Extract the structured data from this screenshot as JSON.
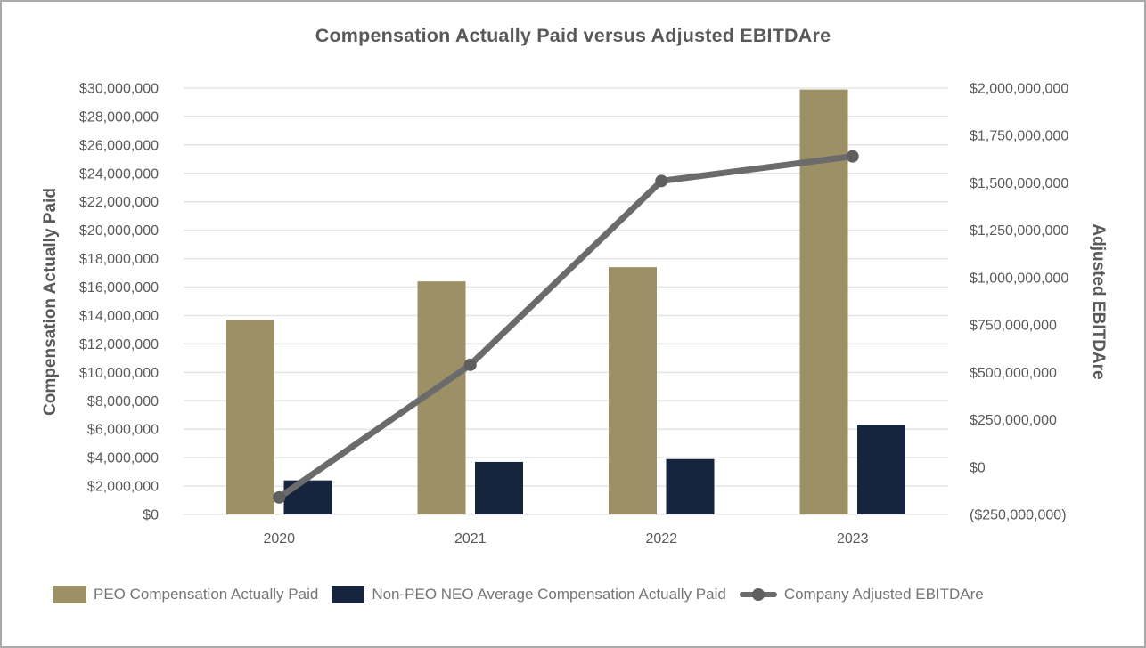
{
  "chart_data": {
    "type": "bar",
    "subtype": "combo-bar-line-dual-axis",
    "title": "Compensation Actually Paid versus Adjusted EBITDAre",
    "categories": [
      "2020",
      "2021",
      "2022",
      "2023"
    ],
    "series": [
      {
        "name": "PEO Compensation Actually Paid",
        "kind": "bar",
        "axis": "left",
        "color": "#9c9066",
        "values": [
          13700000,
          16400000,
          17400000,
          29900000
        ]
      },
      {
        "name": "Non-PEO NEO Average Compensation Actually Paid",
        "kind": "bar",
        "axis": "left",
        "color": "#17243e",
        "values": [
          2400000,
          3700000,
          3900000,
          6300000
        ]
      },
      {
        "name": "Company Adjusted EBITDAre",
        "kind": "line",
        "axis": "right",
        "color": "#6b6b6b",
        "marker_color": "#5f5f5f",
        "values": [
          -160000000,
          540000000,
          1510000000,
          1640000000
        ]
      }
    ],
    "left_axis": {
      "label": "Compensation Actually Paid",
      "min": 0,
      "max": 30000000,
      "step": 2000000,
      "tick_format": "$#,##0 with negatives in parentheses"
    },
    "right_axis": {
      "label": "Adjusted EBITDAre",
      "min": -250000000,
      "max": 2000000000,
      "step": 250000000,
      "tick_format": "$#,##0 with negatives in parentheses"
    },
    "grid": true,
    "legend_position": "bottom",
    "colors": {
      "grid_line": "#e5e5e5",
      "tick_text": "#595959",
      "title_text": "#595959",
      "legend_text": "#757575",
      "frame_border": "#a9a9a9",
      "background": "#ffffff"
    }
  }
}
